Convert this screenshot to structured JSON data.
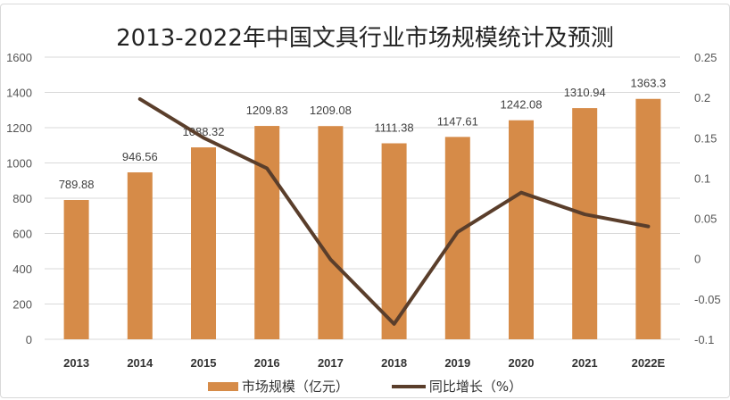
{
  "title": "2013-2022年中国文具行业市场规模统计及预测",
  "colors": {
    "bar": "#d68b48",
    "line": "#5a3e2b",
    "grid": "#d9d9d9",
    "text": "#555555"
  },
  "legend": {
    "bar_label": "市场规模（亿元）",
    "line_label": "同比增长（%）"
  },
  "chart_data": {
    "type": "bar+line",
    "title": "2013-2022年中国文具行业市场规模统计及预测",
    "categories": [
      "2013",
      "2014",
      "2015",
      "2016",
      "2017",
      "2018",
      "2019",
      "2020",
      "2021",
      "2022E"
    ],
    "series": [
      {
        "name": "市场规模（亿元）",
        "type": "bar",
        "axis": "left",
        "values": [
          789.88,
          946.56,
          1088.32,
          1209.83,
          1209.08,
          1111.38,
          1147.61,
          1242.08,
          1310.94,
          1363.3
        ],
        "labels": [
          "789.88",
          "946.56",
          "1088.32",
          "1209.83",
          "1209.08",
          "1111.38",
          "1147.61",
          "1242.08",
          "1310.94",
          "1363.3"
        ]
      },
      {
        "name": "同比增长（%）",
        "type": "line",
        "axis": "right",
        "values": [
          null,
          0.198,
          0.15,
          0.112,
          -0.001,
          -0.081,
          0.033,
          0.082,
          0.055,
          0.04
        ]
      }
    ],
    "left_axis": {
      "min": 0,
      "max": 1600,
      "ticks": [
        "0",
        "200",
        "400",
        "600",
        "800",
        "1000",
        "1200",
        "1400",
        "1600"
      ]
    },
    "right_axis": {
      "min": -0.1,
      "max": 0.25,
      "ticks": [
        "-0.1",
        "-0.05",
        "0",
        "0.05",
        "0.1",
        "0.15",
        "0.2",
        "0.25"
      ]
    },
    "grid": true,
    "legend_position": "bottom"
  }
}
